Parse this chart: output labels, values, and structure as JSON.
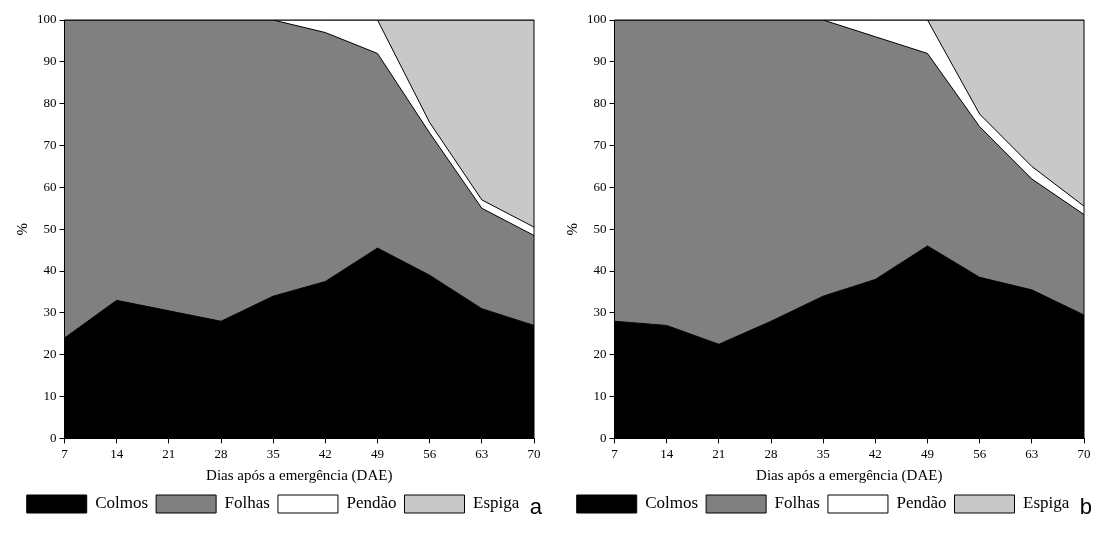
{
  "chart_data": [
    {
      "type": "area",
      "stacked": true,
      "x": [
        7,
        14,
        21,
        28,
        35,
        42,
        49,
        56,
        63,
        70
      ],
      "xlabel": "Dias após a emergência (DAE)",
      "ylabel": "%",
      "xlim": [
        7,
        70
      ],
      "xticks": [
        7,
        14,
        21,
        28,
        35,
        42,
        49,
        56,
        63,
        70
      ],
      "ylim": [
        0,
        100
      ],
      "yticks": [
        0,
        10,
        20,
        30,
        40,
        50,
        60,
        70,
        80,
        90,
        100
      ],
      "grid": false,
      "legend": "bottom",
      "annotations": [
        "a"
      ],
      "series": [
        {
          "name": "Colmos",
          "color": "#000000",
          "values": [
            24,
            33,
            30.5,
            28,
            34,
            37.5,
            45.5,
            39,
            31,
            27
          ]
        },
        {
          "name": "Folhas",
          "color": "#808080",
          "values": [
            76,
            67,
            69.5,
            72,
            66,
            59.5,
            46.5,
            34,
            24,
            21.5
          ]
        },
        {
          "name": "Pendão",
          "color": "#ffffff",
          "values": [
            0,
            0,
            0,
            0,
            0,
            3,
            8,
            2.5,
            2,
            2
          ]
        },
        {
          "name": "Espiga",
          "color": "#c8c8c8",
          "values": [
            0,
            0,
            0,
            0,
            0,
            0,
            0,
            24.5,
            43,
            49.5
          ]
        }
      ]
    },
    {
      "type": "area",
      "stacked": true,
      "x": [
        7,
        14,
        21,
        28,
        35,
        42,
        49,
        56,
        63,
        70
      ],
      "xlabel": "Dias após a emergência (DAE)",
      "ylabel": "%",
      "xlim": [
        7,
        70
      ],
      "xticks": [
        7,
        14,
        21,
        28,
        35,
        42,
        49,
        56,
        63,
        70
      ],
      "ylim": [
        0,
        100
      ],
      "yticks": [
        0,
        10,
        20,
        30,
        40,
        50,
        60,
        70,
        80,
        90,
        100
      ],
      "grid": false,
      "legend": "bottom",
      "annotations": [
        "b"
      ],
      "series": [
        {
          "name": "Colmos",
          "color": "#000000",
          "values": [
            28,
            27,
            22.5,
            28,
            34,
            38,
            46,
            38.5,
            35.5,
            29.5
          ]
        },
        {
          "name": "Folhas",
          "color": "#808080",
          "values": [
            72,
            73,
            77.5,
            72,
            66,
            58,
            46,
            36,
            26.5,
            24
          ]
        },
        {
          "name": "Pendão",
          "color": "#ffffff",
          "values": [
            0,
            0,
            0,
            0,
            0,
            4,
            8,
            3,
            3,
            2
          ]
        },
        {
          "name": "Espiga",
          "color": "#c8c8c8",
          "values": [
            0,
            0,
            0,
            0,
            0,
            0,
            0,
            22.5,
            35,
            44.5
          ]
        }
      ]
    }
  ]
}
